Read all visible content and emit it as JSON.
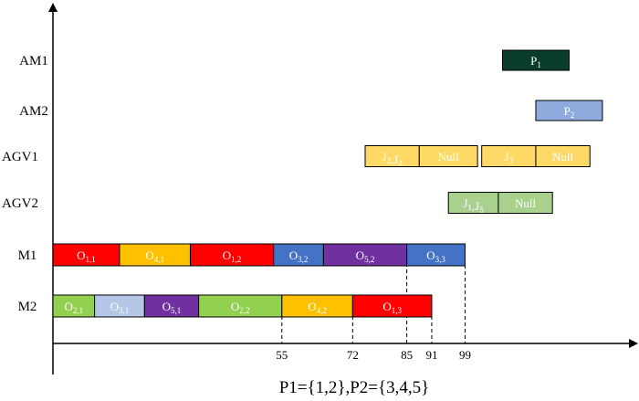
{
  "caption": "P1={1,2},P2={3,4,5}",
  "colors": {
    "red": "#ff0000",
    "orange": "#ffc000",
    "blue": "#4472c4",
    "purple": "#7030a0",
    "green": "#92d050",
    "lightblue": "#b4c7e7",
    "yellow": "#ffd966",
    "lightgreen": "#a9d18e",
    "darkgreen": "#0b3d2e",
    "periwinkle": "#8faadc"
  },
  "chart_data": {
    "type": "gantt",
    "rows": [
      "AM1",
      "AM2",
      "AGV1",
      "AGV2",
      "M1",
      "M2"
    ],
    "x_ticks": [
      55,
      72,
      85,
      91,
      99
    ],
    "bars": [
      {
        "row": "M1",
        "label": "O",
        "sub": "1,1",
        "start": 0,
        "end": 16,
        "color": "red"
      },
      {
        "row": "M1",
        "label": "O",
        "sub": "4,1",
        "start": 16,
        "end": 33,
        "color": "orange"
      },
      {
        "row": "M1",
        "label": "O",
        "sub": "1,2",
        "start": 33,
        "end": 53,
        "color": "red"
      },
      {
        "row": "M1",
        "label": "O",
        "sub": "3,2",
        "start": 53,
        "end": 65,
        "color": "blue"
      },
      {
        "row": "M1",
        "label": "O",
        "sub": "5,2",
        "start": 65,
        "end": 85,
        "color": "purple"
      },
      {
        "row": "M1",
        "label": "O",
        "sub": "3,3",
        "start": 85,
        "end": 99,
        "color": "blue"
      },
      {
        "row": "M2",
        "label": "O",
        "sub": "2,1",
        "start": 0,
        "end": 10,
        "color": "green"
      },
      {
        "row": "M2",
        "label": "O",
        "sub": "3,1",
        "start": 10,
        "end": 22,
        "color": "lightblue"
      },
      {
        "row": "M2",
        "label": "O",
        "sub": "5,1",
        "start": 22,
        "end": 35,
        "color": "purple"
      },
      {
        "row": "M2",
        "label": "O",
        "sub": "2,2",
        "start": 35,
        "end": 55,
        "color": "green"
      },
      {
        "row": "M2",
        "label": "O",
        "sub": "4,2",
        "start": 55,
        "end": 72,
        "color": "orange"
      },
      {
        "row": "M2",
        "label": "O",
        "sub": "1,3",
        "start": 72,
        "end": 91,
        "color": "red"
      },
      {
        "row": "AGV1",
        "label": "J",
        "sub": "2",
        "label2": ",J",
        "sub2": "4",
        "start": 75,
        "end": 88,
        "color": "yellow"
      },
      {
        "row": "AGV1",
        "label": "Null",
        "start": 88,
        "end": 102,
        "color": "yellow"
      },
      {
        "row": "AGV1",
        "label": "J",
        "sub": "3",
        "start": 103,
        "end": 116,
        "color": "yellow"
      },
      {
        "row": "AGV1",
        "label": "Null",
        "start": 116,
        "end": 129,
        "color": "yellow"
      },
      {
        "row": "AGV2",
        "label": "J",
        "sub": "1",
        "label2": ",J",
        "sub2": "5",
        "start": 95,
        "end": 107,
        "color": "lightgreen"
      },
      {
        "row": "AGV2",
        "label": "Null",
        "start": 107,
        "end": 120,
        "color": "lightgreen"
      },
      {
        "row": "AM1",
        "label": "P",
        "sub": "1",
        "start": 108,
        "end": 124,
        "color": "darkgreen"
      },
      {
        "row": "AM2",
        "label": "P",
        "sub": "2",
        "start": 116,
        "end": 132,
        "color": "periwinkle"
      }
    ]
  }
}
